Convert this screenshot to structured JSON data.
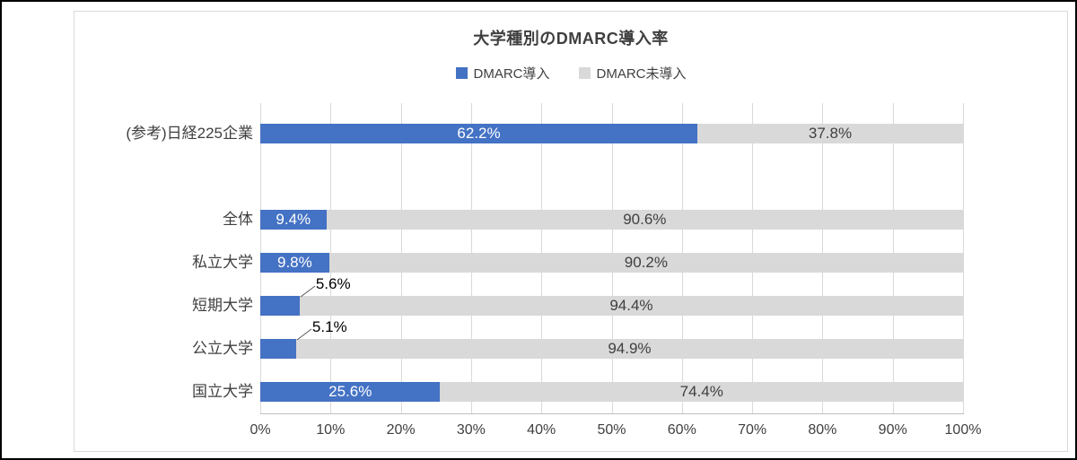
{
  "chart_data": {
    "type": "bar",
    "orientation": "horizontal",
    "stacked": true,
    "title": "大学種別のDMARC導入率",
    "categories": [
      "(参考)日経225企業",
      "全体",
      "私立大学",
      "短期大学",
      "公立大学",
      "国立大学"
    ],
    "series": [
      {
        "name": "DMARC導入",
        "color": "#4472C4",
        "values": [
          62.2,
          9.4,
          9.8,
          5.6,
          5.1,
          25.6
        ]
      },
      {
        "name": "DMARC未導入",
        "color": "#D9D9D9",
        "values": [
          37.8,
          90.6,
          90.2,
          94.4,
          94.9,
          74.4
        ]
      }
    ],
    "data_labels": {
      "series1": [
        "62.2%",
        "9.4%",
        "9.8%",
        "5.6%",
        "5.1%",
        "25.6%"
      ],
      "series2": [
        "37.8%",
        "90.6%",
        "90.2%",
        "94.4%",
        "94.9%",
        "74.4%"
      ]
    },
    "x_ticks": [
      "0%",
      "10%",
      "20%",
      "30%",
      "40%",
      "50%",
      "60%",
      "70%",
      "80%",
      "90%",
      "100%"
    ],
    "xlim": [
      0,
      100
    ],
    "grid": true,
    "legend_position": "top"
  },
  "colors": {
    "adopted": "#4472C4",
    "not_adopted": "#D9D9D9",
    "grid": "#D9D9D9",
    "axis_text": "#404040",
    "label_on_blue": "#FFFFFF",
    "label_on_gray": "#3F3F3F",
    "callout_line": "#595959"
  }
}
